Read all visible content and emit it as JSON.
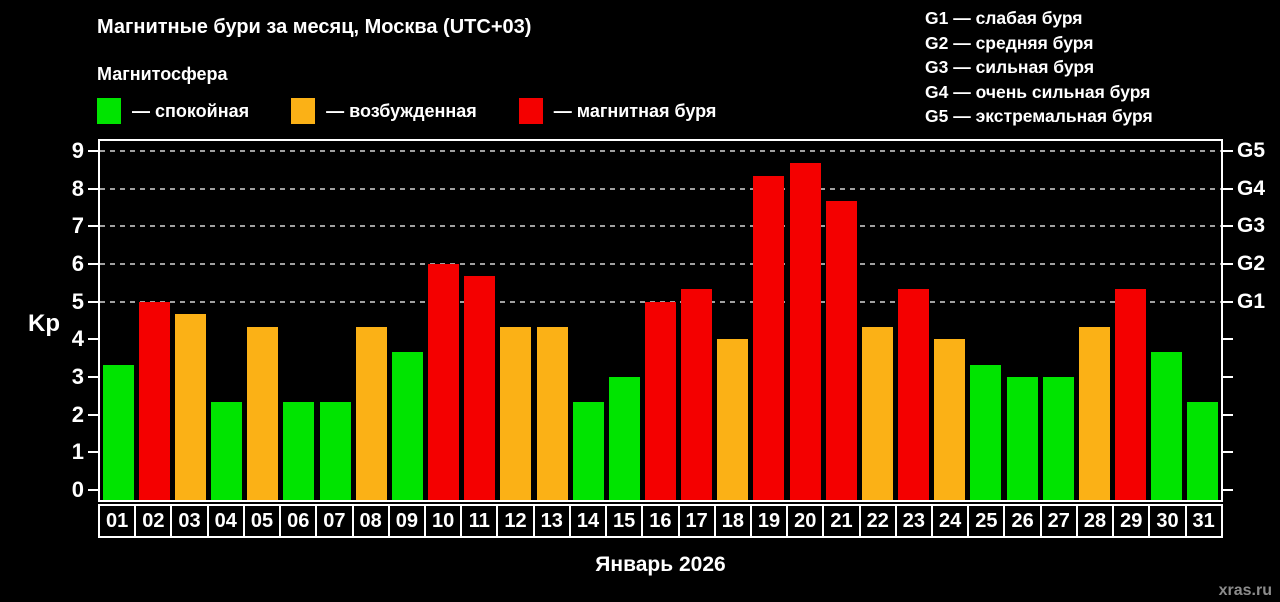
{
  "header": {
    "title": "Магнитные бури за месяц, Москва (UTC+03)",
    "subtitle": "Магнитосфера",
    "legend": [
      {
        "key": "calm",
        "label": "— спокойная"
      },
      {
        "key": "excited",
        "label": "— возбужденная"
      },
      {
        "key": "storm",
        "label": "— магнитная буря"
      }
    ],
    "g_scale": [
      "G1 — слабая буря",
      "G2 — средняя буря",
      "G3 — сильная буря",
      "G4 — очень сильная буря",
      "G5 — экстремальная буря"
    ]
  },
  "chart_data": {
    "type": "bar",
    "title": "Магнитные бури за месяц, Москва (UTC+03)",
    "subtitle": "Магнитосфера",
    "xlabel": "Январь 2026",
    "ylabel": "Kp",
    "ylim": [
      0,
      9
    ],
    "y_ticks": [
      0,
      1,
      2,
      3,
      4,
      5,
      6,
      7,
      8,
      9
    ],
    "gridlines": [
      5,
      6,
      7,
      8,
      9
    ],
    "right_axis": [
      {
        "value": 5,
        "label": "G1"
      },
      {
        "value": 6,
        "label": "G2"
      },
      {
        "value": 7,
        "label": "G3"
      },
      {
        "value": 8,
        "label": "G4"
      },
      {
        "value": 9,
        "label": "G5"
      }
    ],
    "legend_position": "top",
    "grid": "dashed-horizontal",
    "categories": [
      "01",
      "02",
      "03",
      "04",
      "05",
      "06",
      "07",
      "08",
      "09",
      "10",
      "11",
      "12",
      "13",
      "14",
      "15",
      "16",
      "17",
      "18",
      "19",
      "20",
      "21",
      "22",
      "23",
      "24",
      "25",
      "26",
      "27",
      "28",
      "29",
      "30",
      "31"
    ],
    "values": [
      3.33,
      5.0,
      4.67,
      2.33,
      4.33,
      2.33,
      2.33,
      4.33,
      3.67,
      6.0,
      5.67,
      4.33,
      4.33,
      2.33,
      3.0,
      5.0,
      5.33,
      4.0,
      8.33,
      8.67,
      7.67,
      4.33,
      5.33,
      4.0,
      3.33,
      3.0,
      3.0,
      4.33,
      5.33,
      3.67,
      2.33
    ],
    "states": [
      "calm",
      "storm",
      "excited",
      "calm",
      "excited",
      "calm",
      "calm",
      "excited",
      "calm",
      "storm",
      "storm",
      "excited",
      "excited",
      "calm",
      "calm",
      "storm",
      "storm",
      "excited",
      "storm",
      "storm",
      "storm",
      "excited",
      "storm",
      "excited",
      "calm",
      "calm",
      "calm",
      "excited",
      "storm",
      "calm",
      "calm"
    ],
    "colors": {
      "calm": "#00e400",
      "excited": "#fbb116",
      "storm": "#f40000"
    },
    "axis_color": "#ffffff",
    "gridline_color": "#a0a0a0",
    "background": "#000000"
  },
  "footer": {
    "month_label": "Январь 2026",
    "watermark": "xras.ru"
  }
}
